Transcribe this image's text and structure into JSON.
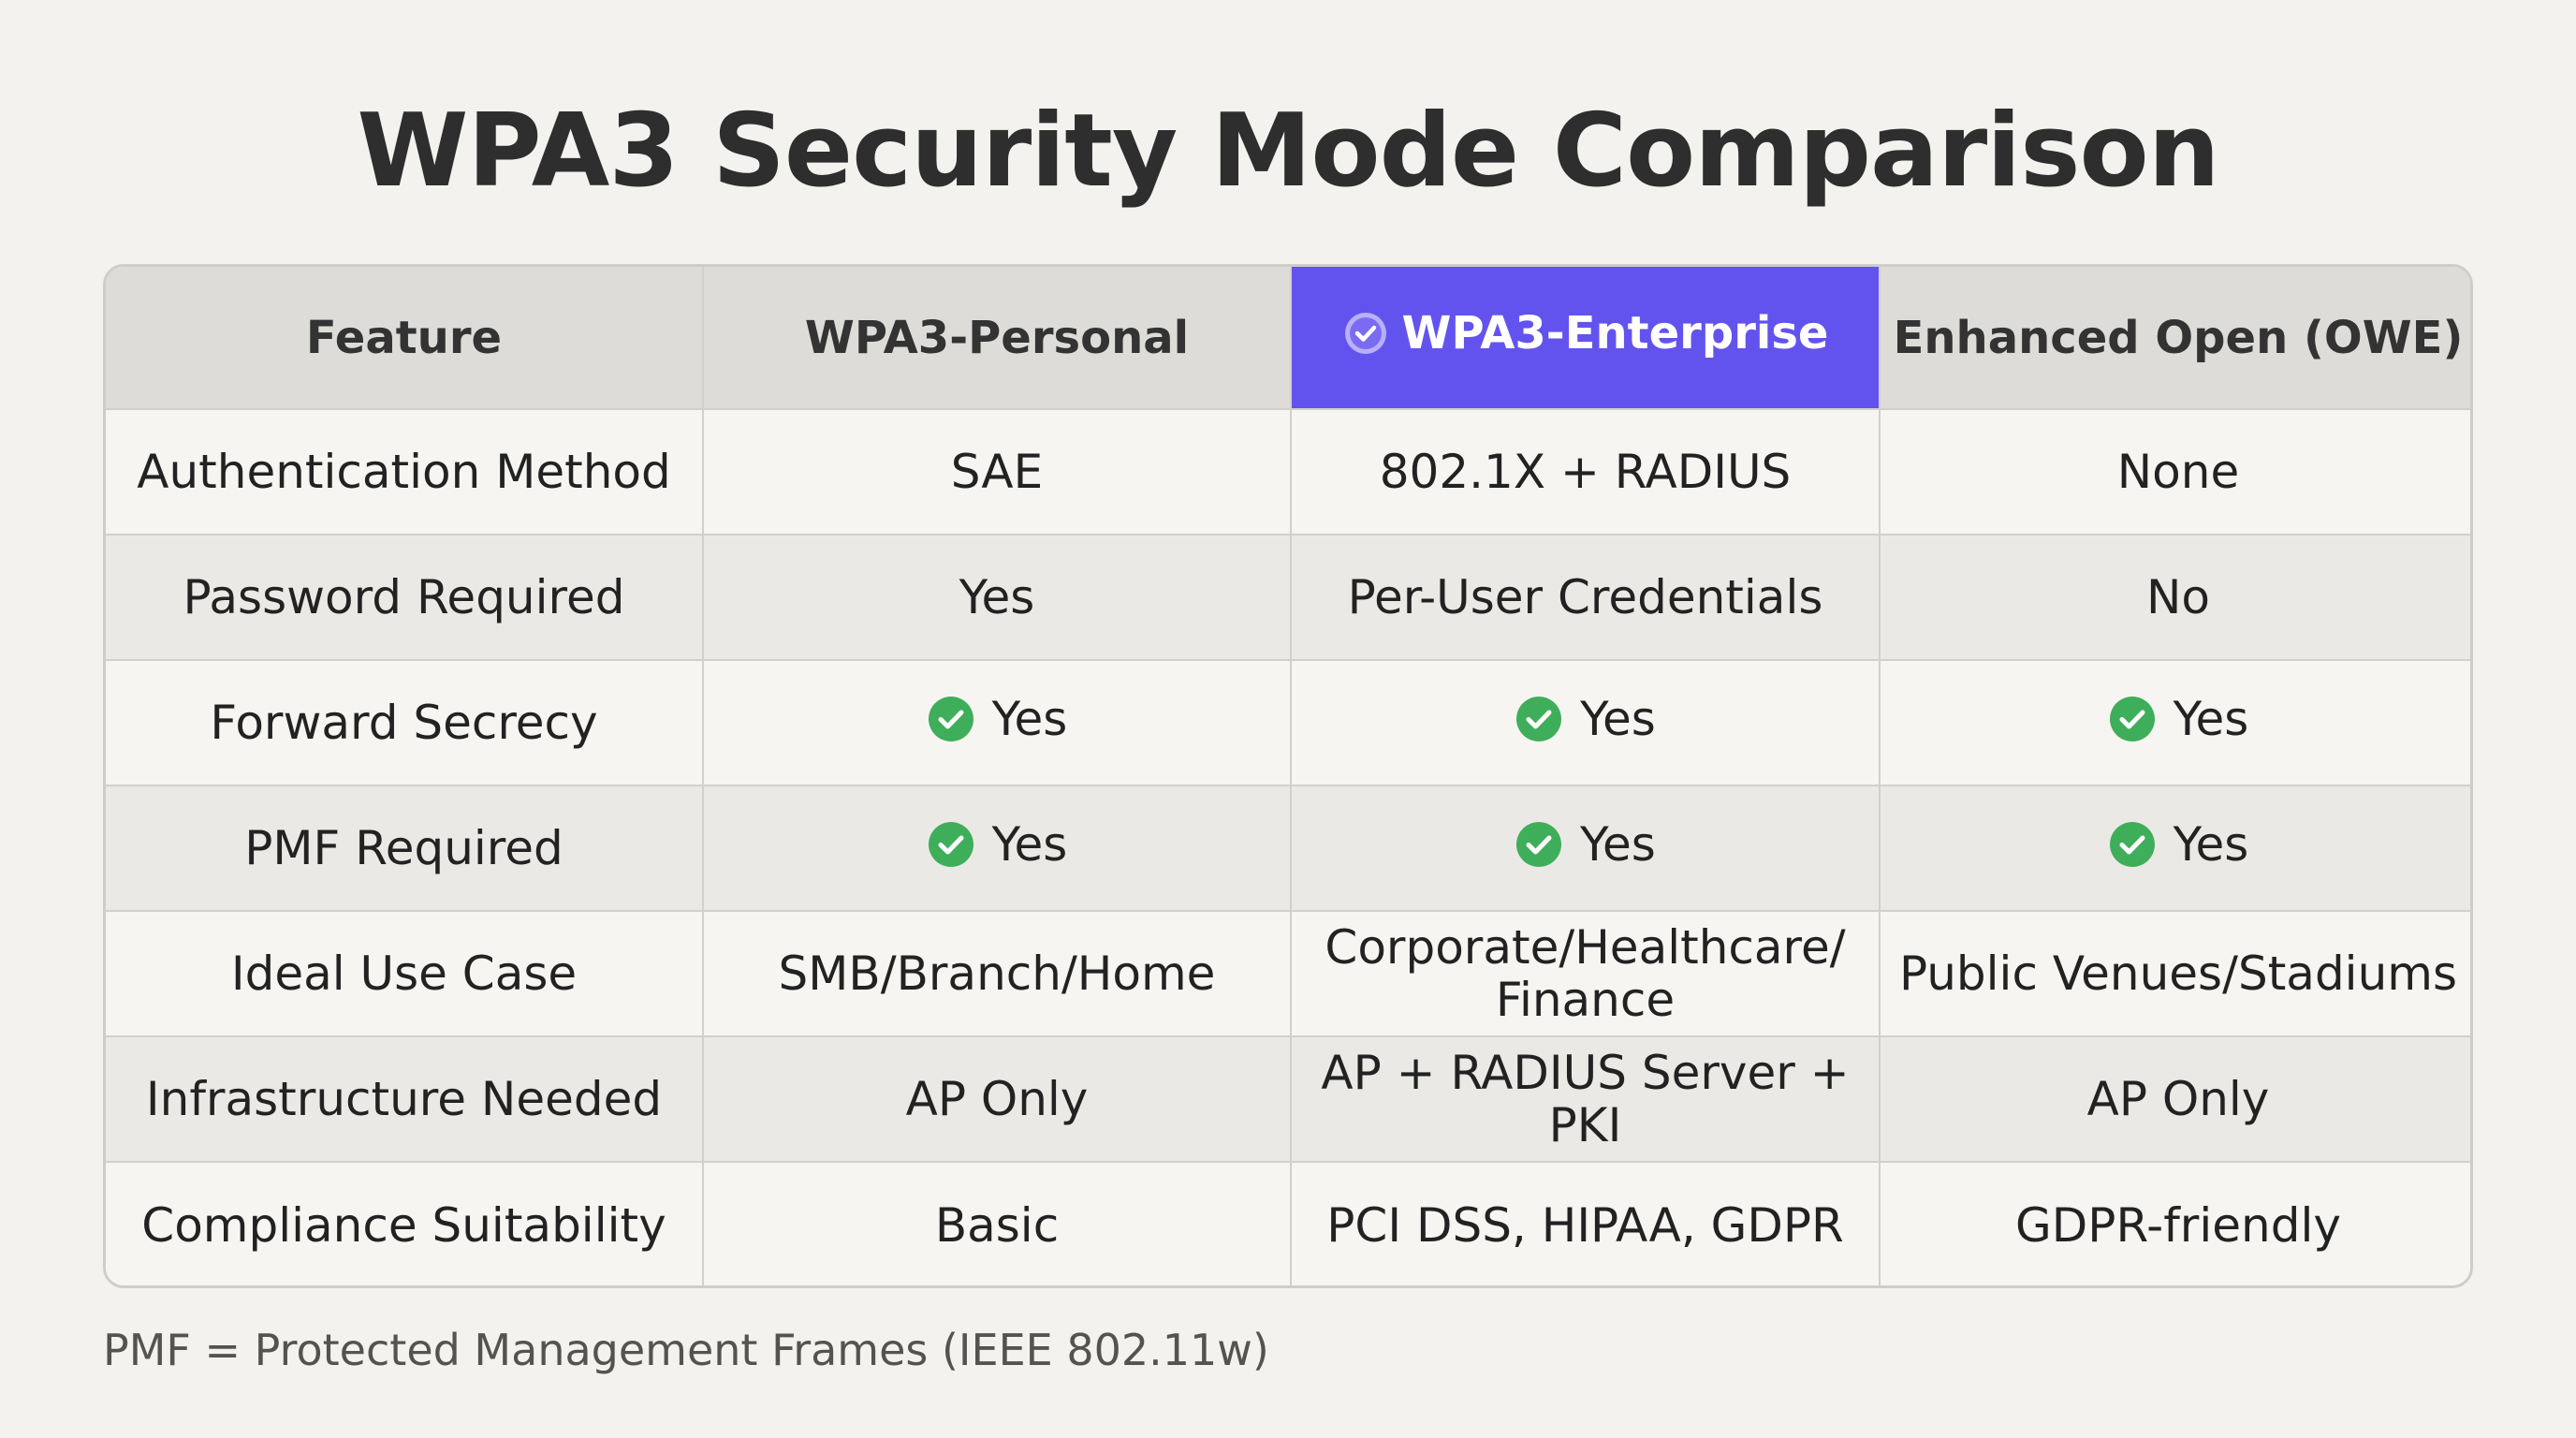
{
  "title": "WPA3 Security Mode Comparison",
  "colors": {
    "highlight_header": "#6353ee",
    "check_green": "#3fae5a",
    "header_bg": "#dedcd8"
  },
  "table": {
    "headers": [
      "Feature",
      "WPA3-Personal",
      "WPA3-Enterprise",
      "Enhanced Open (OWE)"
    ],
    "highlighted_column": "WPA3-Enterprise",
    "highlight_icon": "check-circle-icon",
    "rows": [
      {
        "feature": "Authentication Method",
        "personal": "SAE",
        "enterprise": "802.1X + RADIUS",
        "owe": "None"
      },
      {
        "feature": "Password Required",
        "personal": "Yes",
        "enterprise": "Per-User Credentials",
        "owe": "No"
      },
      {
        "feature": "Forward Secrecy",
        "personal": "Yes",
        "enterprise": "Yes",
        "owe": "Yes"
      },
      {
        "feature": "PMF Required",
        "personal": "Yes",
        "enterprise": "Yes",
        "owe": "Yes"
      },
      {
        "feature": "Ideal Use Case",
        "personal": "SMB/Branch/Home",
        "enterprise": "Corporate/Healthcare/\nFinance",
        "owe": "Public Venues/Stadiums"
      },
      {
        "feature": "Infrastructure Needed",
        "personal": "AP Only",
        "enterprise": "AP + RADIUS Server + PKI",
        "owe": "AP Only"
      },
      {
        "feature": "Compliance Suitability",
        "personal": "Basic",
        "enterprise": "PCI DSS, HIPAA, GDPR",
        "owe": "GDPR-friendly"
      }
    ]
  },
  "footnote": "PMF = Protected Management Frames (IEEE 802.11w)"
}
